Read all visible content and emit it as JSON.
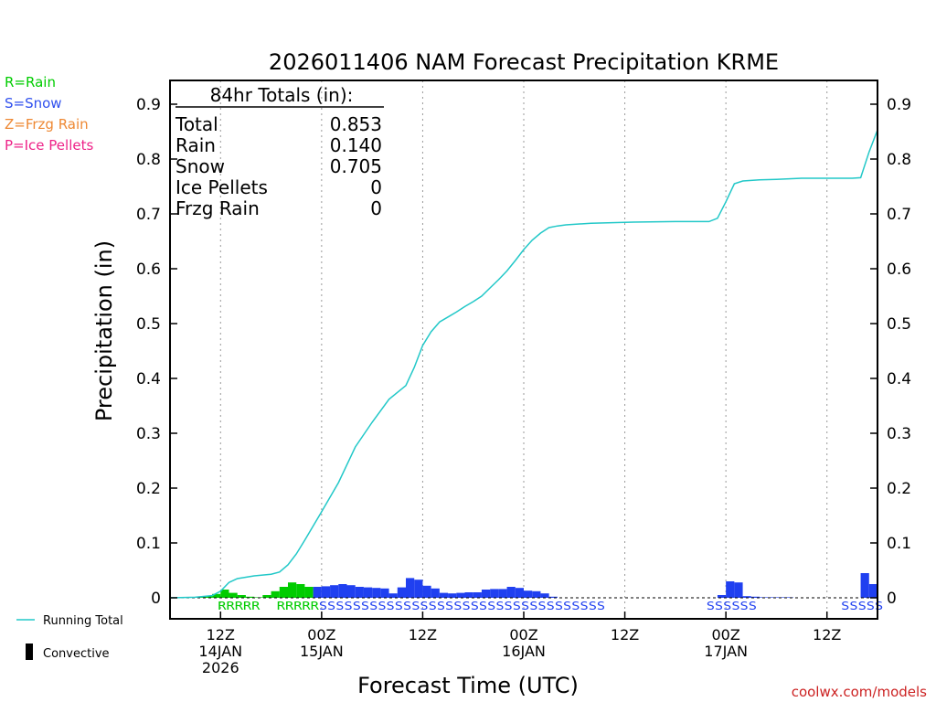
{
  "legend_left": [
    {
      "label": "R=Rain",
      "color": "#00cc00"
    },
    {
      "label": "S=Snow",
      "color": "#3050ee"
    },
    {
      "label": "Z=Frzg Rain",
      "color": "#ee8833"
    },
    {
      "label": "P=Ice Pellets",
      "color": "#ee2288"
    }
  ],
  "legend_bottom": {
    "running_total": "Running Total",
    "convective": "Convective"
  },
  "totals_box": {
    "title": "84hr Totals (in):",
    "rows": [
      {
        "label": "Total",
        "value": "0.853"
      },
      {
        "label": "Rain",
        "value": "0.140"
      },
      {
        "label": "Snow",
        "value": "0.705"
      },
      {
        "label": "Ice Pellets",
        "value": "0"
      },
      {
        "label": "Frzg Rain",
        "value": "0"
      }
    ]
  },
  "credit": "coolwx.com/models",
  "colors": {
    "rain": "#00cc00",
    "snow": "#2040f0",
    "line": "#22c8c8"
  },
  "chart_data": {
    "type": "bar",
    "title": "2026011406 NAM Forecast Precipitation KRME",
    "xlabel": "Forecast Time (UTC)",
    "ylabel": "Precipitation (in)",
    "ylim": [
      0,
      0.9
    ],
    "xlim_hours": [
      0,
      84
    ],
    "yticks": [
      0,
      0.1,
      0.2,
      0.3,
      0.4,
      0.5,
      0.6,
      0.7,
      0.8,
      0.9
    ],
    "ytick_labels": [
      "0",
      "0.1",
      "0.2",
      "0.3",
      "0.4",
      "0.5",
      "0.6",
      "0.7",
      "0.8",
      "0.9"
    ],
    "xticks": [
      {
        "hour": 6,
        "lines": [
          "12Z",
          "14JAN",
          "2026"
        ]
      },
      {
        "hour": 18,
        "lines": [
          "00Z",
          "15JAN"
        ]
      },
      {
        "hour": 30,
        "lines": [
          "12Z"
        ]
      },
      {
        "hour": 42,
        "lines": [
          "00Z",
          "16JAN"
        ]
      },
      {
        "hour": 54,
        "lines": [
          "12Z"
        ]
      },
      {
        "hour": 66,
        "lines": [
          "00Z",
          "17JAN"
        ]
      },
      {
        "hour": 78,
        "lines": [
          "12Z"
        ]
      }
    ],
    "bars": {
      "hours": [
        1,
        2,
        3,
        4,
        5,
        6,
        7,
        8,
        9,
        10,
        11,
        12,
        13,
        14,
        15,
        16,
        17,
        18,
        19,
        20,
        21,
        22,
        23,
        24,
        25,
        26,
        27,
        28,
        29,
        30,
        31,
        32,
        33,
        34,
        35,
        36,
        37,
        38,
        39,
        40,
        41,
        42,
        43,
        44,
        45,
        46,
        47,
        48,
        49,
        50,
        51,
        52,
        53,
        54,
        55,
        56,
        57,
        58,
        59,
        60,
        61,
        62,
        63,
        64,
        65,
        66,
        67,
        68,
        69,
        70,
        71,
        72,
        73,
        74,
        75,
        76,
        77,
        78,
        79,
        80,
        81,
        82,
        83,
        84
      ],
      "values": [
        0,
        0.001,
        0.001,
        0.002,
        0.003,
        0.007,
        0.015,
        0.009,
        0.005,
        0.002,
        0.001,
        0.005,
        0.012,
        0.02,
        0.028,
        0.025,
        0.02,
        0.02,
        0.021,
        0.023,
        0.025,
        0.023,
        0.02,
        0.019,
        0.018,
        0.017,
        0.008,
        0.019,
        0.036,
        0.033,
        0.022,
        0.017,
        0.009,
        0.008,
        0.009,
        0.01,
        0.01,
        0.015,
        0.016,
        0.016,
        0.02,
        0.018,
        0.013,
        0.012,
        0.008,
        0.002,
        0,
        0,
        0,
        0,
        0,
        0,
        0,
        0,
        0,
        0,
        0,
        0,
        0,
        0,
        0,
        0,
        0,
        0,
        0,
        0.005,
        0.03,
        0.028,
        0.003,
        0.002,
        0.001,
        0.001,
        0.001,
        0.001,
        0,
        0,
        0,
        0,
        0,
        0,
        0,
        0,
        0.045,
        0.025
      ],
      "types": [
        "",
        "R",
        "R",
        "R",
        "R",
        "R",
        "R",
        "R",
        "R",
        "R",
        "R",
        "R",
        "R",
        "R",
        "R",
        "R",
        "R",
        "S",
        "S",
        "S",
        "S",
        "S",
        "S",
        "S",
        "S",
        "S",
        "S",
        "S",
        "S",
        "S",
        "S",
        "S",
        "S",
        "S",
        "S",
        "S",
        "S",
        "S",
        "S",
        "S",
        "S",
        "S",
        "S",
        "S",
        "S",
        "S",
        "",
        "",
        "",
        "",
        "",
        "",
        "",
        "",
        "",
        "",
        "",
        "",
        "",
        "",
        "",
        "",
        "",
        "",
        "",
        "S",
        "S",
        "S",
        "S",
        "S",
        "S",
        "S",
        "S",
        "S",
        "",
        "",
        "",
        "",
        "",
        "",
        "",
        "",
        "S",
        "S"
      ]
    },
    "running_total": {
      "hours": [
        0,
        3,
        5,
        6,
        7,
        8,
        10,
        12,
        13,
        14,
        15,
        16,
        18,
        20,
        22,
        24,
        26,
        28,
        29,
        30,
        31,
        32,
        33,
        34,
        35,
        36,
        37,
        38,
        39,
        40,
        41,
        42,
        43,
        44,
        45,
        46,
        47,
        50,
        55,
        60,
        64,
        65,
        66,
        67,
        68,
        70,
        72,
        75,
        80,
        81,
        82,
        83,
        84
      ],
      "values": [
        0,
        0.001,
        0.004,
        0.012,
        0.028,
        0.035,
        0.04,
        0.043,
        0.047,
        0.06,
        0.08,
        0.105,
        0.157,
        0.21,
        0.275,
        0.32,
        0.362,
        0.387,
        0.42,
        0.46,
        0.485,
        0.503,
        0.512,
        0.521,
        0.531,
        0.54,
        0.55,
        0.565,
        0.58,
        0.596,
        0.615,
        0.635,
        0.652,
        0.665,
        0.675,
        0.678,
        0.68,
        0.683,
        0.685,
        0.686,
        0.686,
        0.692,
        0.722,
        0.755,
        0.76,
        0.762,
        0.763,
        0.765,
        0.765,
        0.765,
        0.766,
        0.813,
        0.853
      ]
    },
    "precip_letters": [
      {
        "text": "RRRRR",
        "start_hour": 6,
        "type": "R"
      },
      {
        "text": "RRRRR",
        "start_hour": 13,
        "type": "R"
      },
      {
        "text": "SSSSSSSSSSSSSSSSSSSSSSSSSSSSSSSSSS",
        "start_hour": 18,
        "type": "S"
      },
      {
        "text": "SSSSS",
        "start_hour": 64,
        "type": "S"
      },
      {
        "text": "S",
        "start_hour": 69,
        "type": "S"
      },
      {
        "text": "SSSSS",
        "start_hour": 80,
        "type": "S"
      }
    ]
  }
}
